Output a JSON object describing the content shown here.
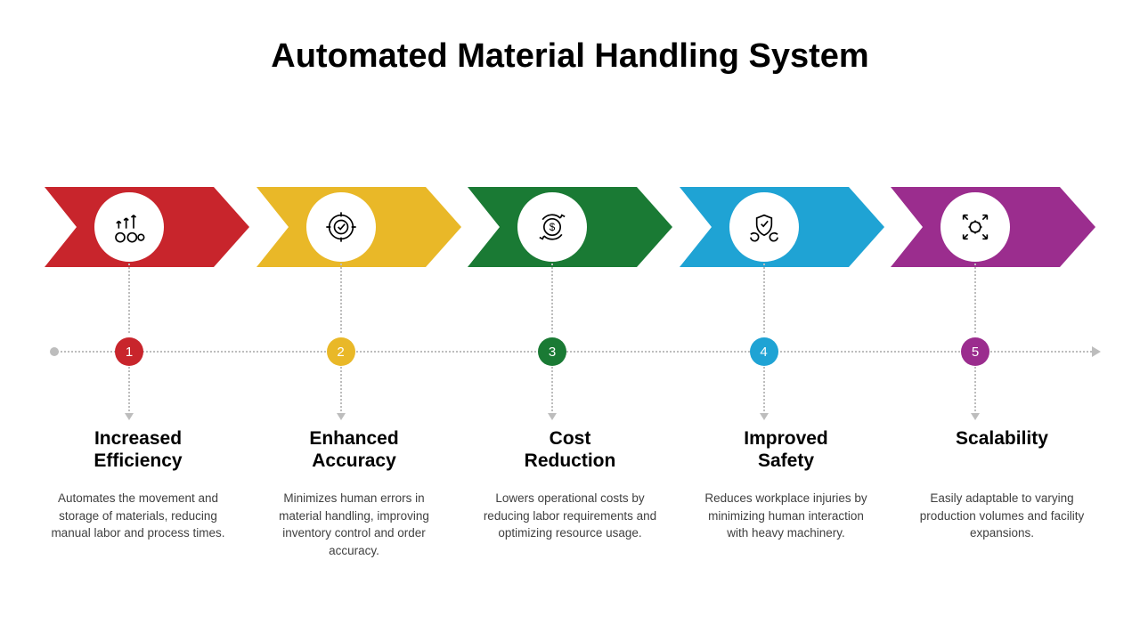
{
  "title": "Automated Material Handling System",
  "background_color": "#ffffff",
  "title_color": "#000000",
  "title_fontsize": 38,
  "timeline": {
    "dot_color": "#bdbdbd",
    "line_style": "dotted"
  },
  "steps": [
    {
      "num": "1",
      "color": "#c8252c",
      "icon": "efficiency-icon",
      "heading": "Increased\nEfficiency",
      "desc": "Automates the movement and storage of materials, reducing manual labor and process times."
    },
    {
      "num": "2",
      "color": "#e9b828",
      "icon": "target-icon",
      "heading": "Enhanced\nAccuracy",
      "desc": "Minimizes human errors in material handling, improving inventory control and order accuracy."
    },
    {
      "num": "3",
      "color": "#1a7a34",
      "icon": "cost-icon",
      "heading": "Cost\nReduction",
      "desc": "Lowers operational costs by reducing labor requirements and optimizing resource usage."
    },
    {
      "num": "4",
      "color": "#1fa3d4",
      "icon": "safety-icon",
      "heading": "Improved\nSafety",
      "desc": "Reduces workplace injuries by minimizing human interaction with heavy machinery."
    },
    {
      "num": "5",
      "color": "#9b2d8e",
      "icon": "scalability-icon",
      "heading": "Scalability",
      "desc": "Easily adaptable to varying production volumes and facility expansions."
    }
  ]
}
